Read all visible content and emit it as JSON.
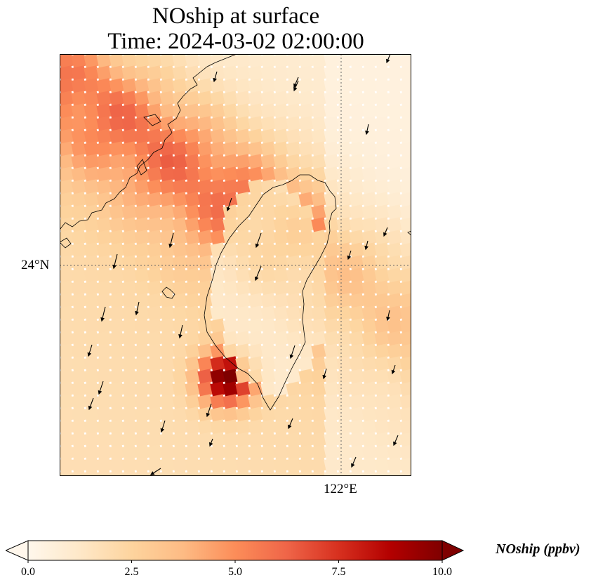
{
  "title": {
    "line1": "NOship at surface",
    "line2": "Time: 2024-03-02 02:00:00"
  },
  "map": {
    "lat_label": "24°N",
    "lon_label": "122°E",
    "gridlines": "dotted",
    "colormap": [
      "#fff7ec",
      "#fee8c8",
      "#fdd49e",
      "#fdbb84",
      "#fc8d59",
      "#ef6548",
      "#d7301f",
      "#b30000",
      "#7f0000"
    ]
  },
  "colorbar": {
    "label": "NOship (ppbv)",
    "min": 0,
    "max": 10,
    "extend": "both",
    "ticks": [
      "0.0",
      "2.5",
      "5.0",
      "7.5",
      "10.0"
    ],
    "tick_values": [
      0,
      2.5,
      5,
      7.5,
      10
    ]
  }
}
